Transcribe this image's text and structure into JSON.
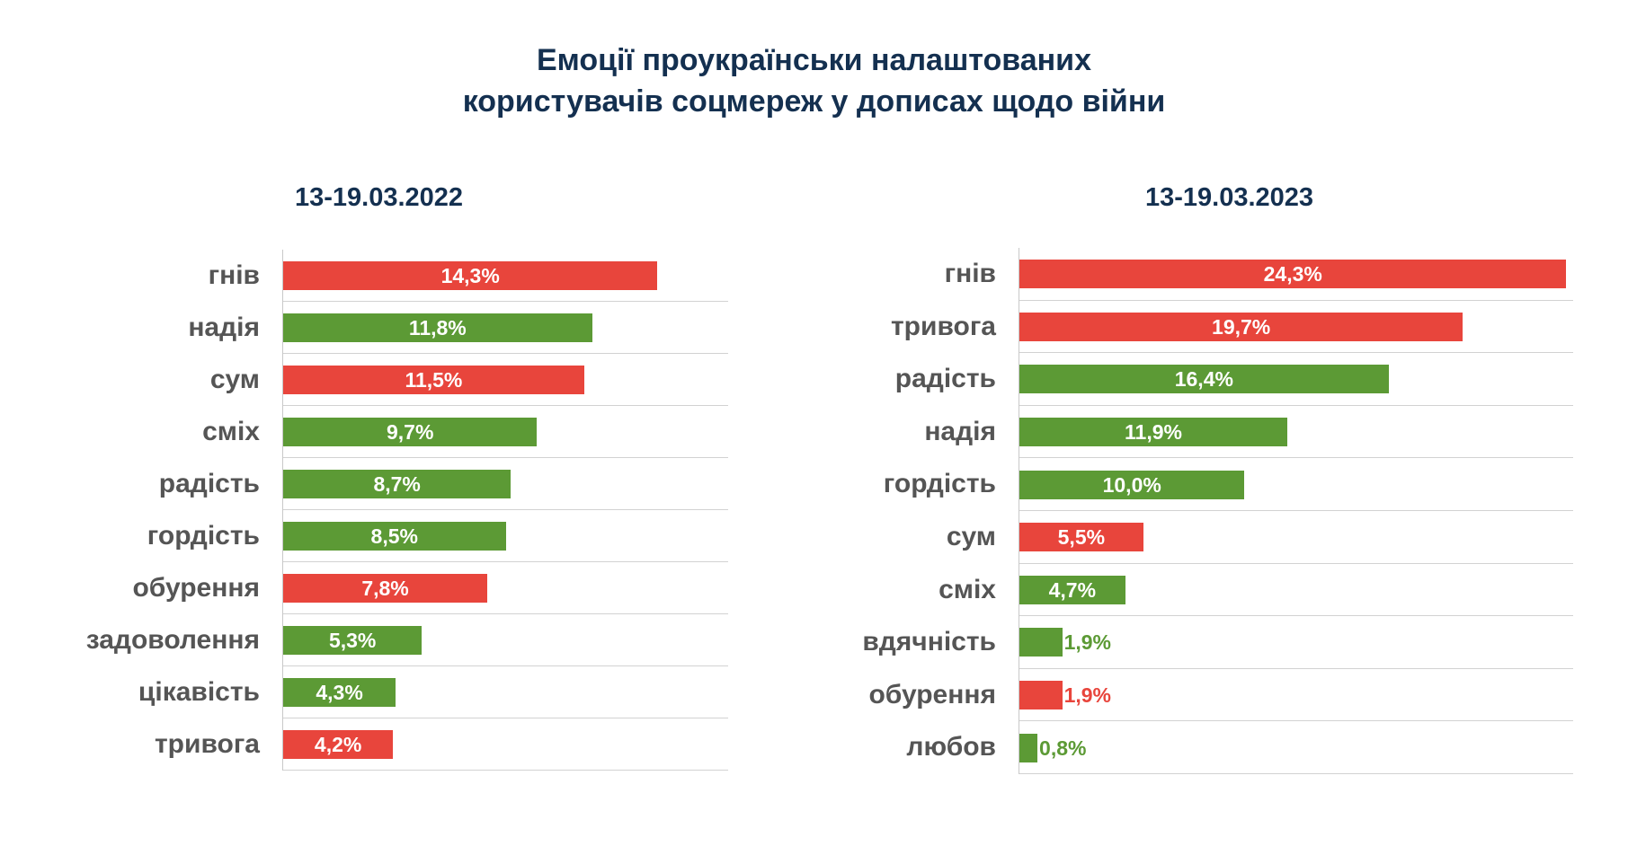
{
  "title_line1": "Емоції проукраїнськи налаштованих",
  "title_line2": "користувачів соцмереж у дописах щодо війни",
  "colors": {
    "negative": "#e8453c",
    "positive": "#5c9a35",
    "title": "#143050",
    "label": "#555555"
  },
  "chart_data": [
    {
      "type": "bar",
      "orientation": "horizontal",
      "title": "13-19.03.2022",
      "xlim": [
        0,
        17
      ],
      "categories": [
        "гнів",
        "надія",
        "сум",
        "сміх",
        "радість",
        "гордість",
        "обурення",
        "задоволення",
        "цікавість",
        "тривога"
      ],
      "values": [
        14.3,
        11.8,
        11.5,
        9.7,
        8.7,
        8.5,
        7.8,
        5.3,
        4.3,
        4.2
      ],
      "labels": [
        "14,3%",
        "11,8%",
        "11,5%",
        "9,7%",
        "8,7%",
        "8,5%",
        "7,8%",
        "5,3%",
        "4,3%",
        "4,2%"
      ],
      "sentiment": [
        "negative",
        "positive",
        "negative",
        "positive",
        "positive",
        "positive",
        "negative",
        "positive",
        "positive",
        "negative"
      ]
    },
    {
      "type": "bar",
      "orientation": "horizontal",
      "title": "13-19.03.2023",
      "xlim": [
        0,
        24.6
      ],
      "categories": [
        "гнів",
        "тривога",
        "радість",
        "надія",
        "гордість",
        "сум",
        "сміх",
        "вдячність",
        "обурення",
        "любов"
      ],
      "values": [
        24.3,
        19.7,
        16.4,
        11.9,
        10.0,
        5.5,
        4.7,
        1.9,
        1.9,
        0.8
      ],
      "labels": [
        "24,3%",
        "19,7%",
        "16,4%",
        "11,9%",
        "10,0%",
        "5,5%",
        "4,7%",
        "1,9%",
        "1,9%",
        "0,8%"
      ],
      "sentiment": [
        "negative",
        "negative",
        "positive",
        "positive",
        "positive",
        "negative",
        "positive",
        "positive",
        "negative",
        "positive"
      ]
    }
  ]
}
